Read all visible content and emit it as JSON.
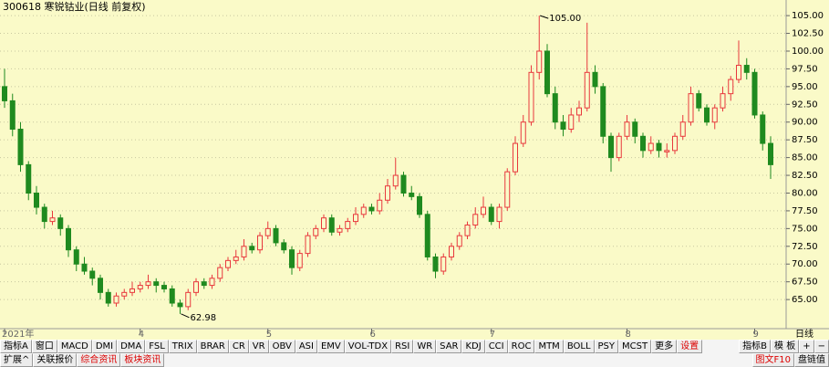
{
  "chart_data": {
    "type": "candlestick",
    "title": "300618 寒锐钴业(日线 前复权)",
    "categories": [
      "2021年",
      null,
      null,
      null,
      null,
      null,
      null,
      null,
      null,
      null,
      null,
      null,
      null,
      null,
      null,
      null,
      null,
      "4",
      null,
      null,
      null,
      null,
      null,
      null,
      null,
      null,
      null,
      null,
      null,
      null,
      null,
      null,
      null,
      "5",
      null,
      null,
      null,
      null,
      null,
      null,
      null,
      null,
      null,
      null,
      null,
      null,
      "6",
      null,
      null,
      null,
      null,
      null,
      null,
      null,
      null,
      null,
      null,
      null,
      null,
      null,
      null,
      "7",
      null,
      null,
      null,
      null,
      null,
      null,
      null,
      null,
      null,
      null,
      null,
      null,
      null,
      null,
      null,
      null,
      "8",
      null,
      null,
      null,
      null,
      null,
      null,
      null,
      null,
      null,
      null,
      null,
      null,
      null,
      null,
      null,
      "9",
      null,
      null
    ],
    "ohlc": [
      [
        95,
        97.5,
        92,
        93
      ],
      [
        93,
        94,
        88,
        89
      ],
      [
        89,
        90,
        83,
        84
      ],
      [
        84,
        84.5,
        79,
        80
      ],
      [
        80,
        81,
        77,
        78
      ],
      [
        78,
        78.5,
        75,
        76
      ],
      [
        76,
        77.5,
        75.5,
        76.5
      ],
      [
        76.5,
        77,
        74,
        75
      ],
      [
        75,
        75.5,
        71,
        72
      ],
      [
        72,
        72.5,
        69,
        70
      ],
      [
        70,
        71,
        68.5,
        69
      ],
      [
        69,
        69.5,
        67,
        68
      ],
      [
        68,
        68.5,
        65,
        66
      ],
      [
        66,
        66.5,
        64,
        64.5
      ],
      [
        64.5,
        66,
        64,
        65.5
      ],
      [
        65.5,
        66.5,
        65,
        66
      ],
      [
        66,
        67.5,
        65.5,
        66.5
      ],
      [
        66.5,
        67.5,
        66,
        67
      ],
      [
        67,
        68.5,
        66.5,
        67.5
      ],
      [
        67.5,
        68,
        66,
        67
      ],
      [
        67,
        67.5,
        66,
        66.5
      ],
      [
        66.5,
        67,
        64,
        64.5
      ],
      [
        64.5,
        65,
        62.98,
        64
      ],
      [
        64,
        66.5,
        63.5,
        66
      ],
      [
        66,
        68,
        65.5,
        67.5
      ],
      [
        67.5,
        68,
        66.5,
        67
      ],
      [
        67,
        68.5,
        66.5,
        68
      ],
      [
        68,
        70,
        67.5,
        69.5
      ],
      [
        69.5,
        71,
        69,
        70.5
      ],
      [
        70.5,
        72,
        70,
        71
      ],
      [
        71,
        73.5,
        70.5,
        72.5
      ],
      [
        72.5,
        73,
        71.5,
        72
      ],
      [
        72,
        74.5,
        71.5,
        74
      ],
      [
        74,
        76,
        73.5,
        75
      ],
      [
        75,
        75.5,
        72.5,
        73
      ],
      [
        73,
        73.5,
        71.5,
        72
      ],
      [
        72,
        72.5,
        68.5,
        69.5
      ],
      [
        69.5,
        72,
        69,
        71.5
      ],
      [
        71.5,
        74.5,
        71,
        74
      ],
      [
        74,
        75.5,
        73.5,
        75
      ],
      [
        75,
        77,
        74.5,
        76.5
      ],
      [
        76.5,
        77,
        74,
        74.5
      ],
      [
        74.5,
        75.5,
        74,
        75
      ],
      [
        75,
        76.5,
        74.5,
        76
      ],
      [
        76,
        78,
        75.5,
        77
      ],
      [
        77,
        78.5,
        76.5,
        78
      ],
      [
        78,
        78.5,
        77,
        77.5
      ],
      [
        77.5,
        80,
        77,
        79
      ],
      [
        79,
        82,
        78.5,
        81
      ],
      [
        81,
        85,
        80.5,
        82.5
      ],
      [
        82.5,
        83,
        79.5,
        80
      ],
      [
        80,
        81,
        79,
        79.5
      ],
      [
        79.5,
        80,
        76.5,
        77
      ],
      [
        77,
        77.5,
        70.5,
        71
      ],
      [
        71,
        71.5,
        68,
        69
      ],
      [
        69,
        71.5,
        68.5,
        71
      ],
      [
        71,
        73,
        70.5,
        72.5
      ],
      [
        72.5,
        74.5,
        72,
        74
      ],
      [
        74,
        76,
        73.5,
        75.5
      ],
      [
        75.5,
        78,
        75,
        77
      ],
      [
        77,
        79.5,
        76.5,
        78
      ],
      [
        78,
        78.5,
        75.5,
        76
      ],
      [
        76,
        78.5,
        75,
        78
      ],
      [
        78,
        83.5,
        77.5,
        83
      ],
      [
        83,
        88,
        82.5,
        87
      ],
      [
        87,
        91,
        86.5,
        90
      ],
      [
        90,
        98,
        89.5,
        97
      ],
      [
        97,
        105,
        96,
        100
      ],
      [
        100,
        101,
        93.5,
        94
      ],
      [
        94,
        95,
        89,
        90
      ],
      [
        90,
        91,
        88,
        89
      ],
      [
        89,
        92,
        88.5,
        91
      ],
      [
        91,
        93,
        90,
        92
      ],
      [
        92,
        104,
        91.5,
        97
      ],
      [
        97,
        98,
        94,
        95
      ],
      [
        95,
        95.5,
        87,
        88
      ],
      [
        88,
        88.5,
        83,
        85
      ],
      [
        85,
        88.5,
        84.5,
        88
      ],
      [
        88,
        91,
        87.5,
        90
      ],
      [
        90,
        90.5,
        87,
        88
      ],
      [
        88,
        88.5,
        85,
        86
      ],
      [
        86,
        88,
        85.5,
        87
      ],
      [
        87,
        87.5,
        85,
        86
      ],
      [
        85.8,
        87,
        85,
        86
      ],
      [
        86,
        88.5,
        85.5,
        88
      ],
      [
        88,
        91,
        87.5,
        90
      ],
      [
        90,
        95,
        89.5,
        94
      ],
      [
        94,
        94.5,
        91.5,
        92
      ],
      [
        92,
        92.5,
        89.5,
        90
      ],
      [
        90,
        92.5,
        89,
        92
      ],
      [
        92,
        95,
        91.5,
        94
      ],
      [
        94,
        96.5,
        93,
        96
      ],
      [
        96,
        101.5,
        95.5,
        98
      ],
      [
        98,
        99,
        96,
        97
      ],
      [
        97,
        97.5,
        90.5,
        91
      ],
      [
        91,
        91.5,
        86,
        87
      ],
      [
        87,
        88,
        82,
        84
      ]
    ],
    "up_color": "#e8383d",
    "down_color": "#1f8a1f",
    "ylim": [
      60.9,
      107.2
    ],
    "yticks": [
      {
        "value": 65,
        "label": "65.00"
      },
      {
        "value": 67.5,
        "label": "67.50"
      },
      {
        "value": 70,
        "label": "70.00"
      },
      {
        "value": 72.5,
        "label": "72.50"
      },
      {
        "value": 75,
        "label": "75.00"
      },
      {
        "value": 77.5,
        "label": "77.50"
      },
      {
        "value": 80,
        "label": "80.00"
      },
      {
        "value": 82.5,
        "label": "82.50"
      },
      {
        "value": 85,
        "label": "85.00"
      },
      {
        "value": 87.5,
        "label": "87.50"
      },
      {
        "value": 90,
        "label": "90.00"
      },
      {
        "value": 92.5,
        "label": "92.50"
      },
      {
        "value": 95,
        "label": "95.00"
      },
      {
        "value": 97.5,
        "label": "97.50"
      },
      {
        "value": 100,
        "label": "100.00"
      },
      {
        "value": 102.5,
        "label": "102.50"
      },
      {
        "value": 105,
        "label": "105.00"
      }
    ],
    "grid": true,
    "annotations": [
      {
        "value": 105,
        "label": "105.00"
      },
      {
        "value": 62.98,
        "label": "62.98"
      }
    ]
  },
  "toolbar": {
    "row1": [
      "指标A",
      "窗口",
      "MACD",
      "DMI",
      "DMA",
      "FSL",
      "TRIX",
      "BRAR",
      "CR",
      "VR",
      "OBV",
      "ASI",
      "EMV",
      "VOL-TDX",
      "RSI",
      "WR",
      "SAR",
      "KDJ",
      "CCI",
      "ROC",
      "MTM",
      "BOLL",
      "PSY",
      "MCST",
      "更多",
      "设置"
    ],
    "row1_right": [
      "指标B",
      "模 板"
    ],
    "period": "日线",
    "zoom": [
      "+",
      "−"
    ],
    "row2": [
      "扩展^",
      "关联报价",
      "综合资讯",
      "板块资讯"
    ],
    "row2_right": [
      "图文F10",
      "盘链值"
    ]
  }
}
